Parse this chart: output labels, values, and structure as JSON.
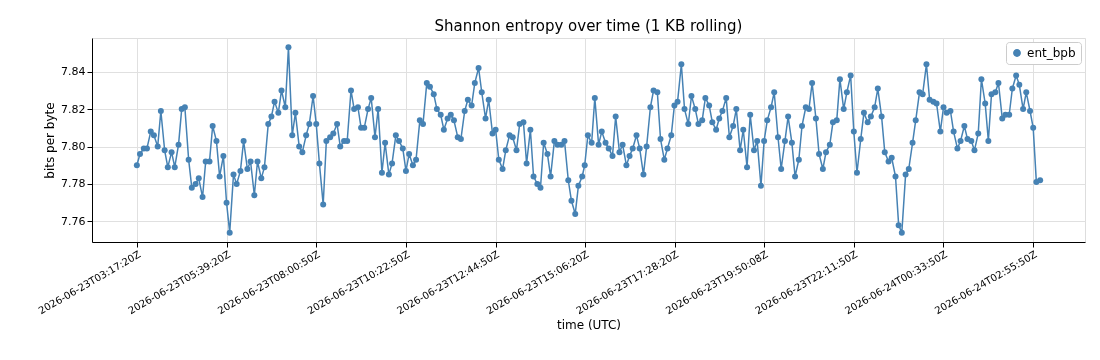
{
  "chart_data": {
    "type": "line",
    "title": "Shannon entropy over time (1 KB rolling)",
    "xlabel": "time (UTC)",
    "ylabel": "bits per byte",
    "xlim": [
      "2026-06-23T02:06",
      "2026-06-24T04:18"
    ],
    "xticks": [
      {
        "value": "2026-06-23T03:17:20",
        "label": "2026-06-23T03:17:20Z"
      },
      {
        "value": "2026-06-23T05:39:20",
        "label": "2026-06-23T05:39:20Z"
      },
      {
        "value": "2026-06-23T08:00:50",
        "label": "2026-06-23T08:00:50Z"
      },
      {
        "value": "2026-06-23T10:22:50",
        "label": "2026-06-23T10:22:50Z"
      },
      {
        "value": "2026-06-23T12:44:50",
        "label": "2026-06-23T12:44:50Z"
      },
      {
        "value": "2026-06-23T15:06:20",
        "label": "2026-06-23T15:06:20Z"
      },
      {
        "value": "2026-06-23T17:28:20",
        "label": "2026-06-23T17:28:20Z"
      },
      {
        "value": "2026-06-23T19:50:08",
        "label": "2026-06-23T19:50:08Z"
      },
      {
        "value": "2026-06-23T22:11:50",
        "label": "2026-06-23T22:11:50Z"
      },
      {
        "value": "2026-06-24T00:33:50",
        "label": "2026-06-24T00:33:50Z"
      },
      {
        "value": "2026-06-24T02:55:50",
        "label": "2026-06-24T02:55:50Z"
      }
    ],
    "ylim": [
      7.749,
      7.858
    ],
    "yticks": [
      {
        "value": 7.76,
        "label": "7.76"
      },
      {
        "value": 7.78,
        "label": "7.78"
      },
      {
        "value": 7.8,
        "label": "7.80"
      },
      {
        "value": 7.82,
        "label": "7.82"
      },
      {
        "value": 7.84,
        "label": "7.84"
      }
    ],
    "grid": true,
    "legend": "top right",
    "marker": "circle",
    "line_style": "solid",
    "x": [
      "2026-06-23T03:17",
      "2026-06-23T03:22",
      "2026-06-23T03:28",
      "2026-06-23T03:33",
      "2026-06-23T03:39",
      "2026-06-23T03:44",
      "2026-06-23T03:50",
      "2026-06-23T03:55",
      "2026-06-23T04:01",
      "2026-06-23T04:06",
      "2026-06-23T04:12",
      "2026-06-23T04:17",
      "2026-06-23T04:23",
      "2026-06-23T04:28",
      "2026-06-23T04:33",
      "2026-06-23T04:39",
      "2026-06-23T04:44",
      "2026-06-23T04:50",
      "2026-06-23T04:55",
      "2026-06-23T05:01",
      "2026-06-23T05:06",
      "2026-06-23T05:12",
      "2026-06-23T05:17",
      "2026-06-23T05:23",
      "2026-06-23T05:28",
      "2026-06-23T05:34",
      "2026-06-23T05:39",
      "2026-06-23T05:44",
      "2026-06-23T05:50",
      "2026-06-23T05:55",
      "2026-06-23T06:01",
      "2026-06-23T06:06",
      "2026-06-23T06:12",
      "2026-06-23T06:17",
      "2026-06-23T06:23",
      "2026-06-23T06:28",
      "2026-06-23T06:34",
      "2026-06-23T06:39",
      "2026-06-23T06:45",
      "2026-06-23T06:50",
      "2026-06-23T06:55",
      "2026-06-23T07:01",
      "2026-06-23T07:06",
      "2026-06-23T07:12",
      "2026-06-23T07:17",
      "2026-06-23T07:23",
      "2026-06-23T07:28",
      "2026-06-23T07:34",
      "2026-06-23T07:39",
      "2026-06-23T07:45",
      "2026-06-23T07:50",
      "2026-06-23T07:56",
      "2026-06-23T08:01",
      "2026-06-23T08:06",
      "2026-06-23T08:12",
      "2026-06-23T08:17",
      "2026-06-23T08:23",
      "2026-06-23T08:28",
      "2026-06-23T08:34",
      "2026-06-23T08:39",
      "2026-06-23T08:45",
      "2026-06-23T08:50",
      "2026-06-23T08:56",
      "2026-06-23T09:01",
      "2026-06-23T09:07",
      "2026-06-23T09:12",
      "2026-06-23T09:17",
      "2026-06-23T09:23",
      "2026-06-23T09:28",
      "2026-06-23T09:34",
      "2026-06-23T09:39",
      "2026-06-23T09:45",
      "2026-06-23T09:50",
      "2026-06-23T09:56",
      "2026-06-23T10:01",
      "2026-06-23T10:07",
      "2026-06-23T10:12",
      "2026-06-23T10:18",
      "2026-06-23T10:23",
      "2026-06-23T10:28",
      "2026-06-23T10:34",
      "2026-06-23T10:39",
      "2026-06-23T10:45",
      "2026-06-23T10:50",
      "2026-06-23T10:56",
      "2026-06-23T11:01",
      "2026-06-23T11:07",
      "2026-06-23T11:12",
      "2026-06-23T11:18",
      "2026-06-23T11:23",
      "2026-06-23T11:29",
      "2026-06-23T11:34",
      "2026-06-23T11:39",
      "2026-06-23T11:45",
      "2026-06-23T11:50",
      "2026-06-23T11:56",
      "2026-06-23T12:01",
      "2026-06-23T12:07",
      "2026-06-23T12:12",
      "2026-06-23T12:18",
      "2026-06-23T12:23",
      "2026-06-23T12:29",
      "2026-06-23T12:34",
      "2026-06-23T12:40",
      "2026-06-23T12:45",
      "2026-06-23T12:50",
      "2026-06-23T12:56",
      "2026-06-23T13:01",
      "2026-06-23T13:07",
      "2026-06-23T13:12",
      "2026-06-23T13:18",
      "2026-06-23T13:23",
      "2026-06-23T13:29",
      "2026-06-23T13:34",
      "2026-06-23T13:40",
      "2026-06-23T13:45",
      "2026-06-23T13:51",
      "2026-06-23T13:56",
      "2026-06-23T14:01",
      "2026-06-23T14:07",
      "2026-06-23T14:12",
      "2026-06-23T14:18",
      "2026-06-23T14:23",
      "2026-06-23T14:29",
      "2026-06-23T14:34",
      "2026-06-23T14:40",
      "2026-06-23T14:45",
      "2026-06-23T14:51",
      "2026-06-23T14:56",
      "2026-06-23T15:02",
      "2026-06-23T15:06",
      "2026-06-23T15:11",
      "2026-06-23T15:17",
      "2026-06-23T15:22",
      "2026-06-23T15:28",
      "2026-06-23T15:33",
      "2026-06-23T15:39",
      "2026-06-23T15:44",
      "2026-06-23T15:50",
      "2026-06-23T15:55",
      "2026-06-23T16:01",
      "2026-06-23T16:06",
      "2026-06-23T16:12",
      "2026-06-23T16:17",
      "2026-06-23T16:22",
      "2026-06-23T16:28",
      "2026-06-23T16:33",
      "2026-06-23T16:39",
      "2026-06-23T16:44",
      "2026-06-23T16:50",
      "2026-06-23T16:55",
      "2026-06-23T17:01",
      "2026-06-23T17:06",
      "2026-06-23T17:12",
      "2026-06-23T17:17",
      "2026-06-23T17:23",
      "2026-06-23T17:28",
      "2026-06-23T17:33",
      "2026-06-23T17:39",
      "2026-06-23T17:44",
      "2026-06-23T17:50",
      "2026-06-23T17:55",
      "2026-06-23T18:01",
      "2026-06-23T18:06",
      "2026-06-23T18:12",
      "2026-06-23T18:17",
      "2026-06-23T18:23",
      "2026-06-23T18:28",
      "2026-06-23T18:34",
      "2026-06-23T18:39",
      "2026-06-23T18:44",
      "2026-06-23T18:50",
      "2026-06-23T18:55",
      "2026-06-23T19:01",
      "2026-06-23T19:06",
      "2026-06-23T19:12",
      "2026-06-23T19:17",
      "2026-06-23T19:23",
      "2026-06-23T19:28",
      "2026-06-23T19:34",
      "2026-06-23T19:39",
      "2026-06-23T19:45",
      "2026-06-23T19:50",
      "2026-06-23T19:55",
      "2026-06-23T20:01",
      "2026-06-23T20:06",
      "2026-06-23T20:12",
      "2026-06-23T20:17",
      "2026-06-23T20:23",
      "2026-06-23T20:28",
      "2026-06-23T20:34",
      "2026-06-23T20:39",
      "2026-06-23T20:45",
      "2026-06-23T20:50",
      "2026-06-23T20:56",
      "2026-06-23T21:01",
      "2026-06-23T21:06",
      "2026-06-23T21:12",
      "2026-06-23T21:17",
      "2026-06-23T21:23",
      "2026-06-23T21:28",
      "2026-06-23T21:34",
      "2026-06-23T21:39",
      "2026-06-23T21:45",
      "2026-06-23T21:50",
      "2026-06-23T21:56",
      "2026-06-23T22:01",
      "2026-06-23T22:07",
      "2026-06-23T22:12",
      "2026-06-23T22:17",
      "2026-06-23T22:23",
      "2026-06-23T22:28",
      "2026-06-23T22:34",
      "2026-06-23T22:39",
      "2026-06-23T22:45",
      "2026-06-23T22:50",
      "2026-06-23T22:56",
      "2026-06-23T23:01",
      "2026-06-23T23:07",
      "2026-06-23T23:12",
      "2026-06-23T23:18",
      "2026-06-23T23:23",
      "2026-06-23T23:28",
      "2026-06-23T23:34",
      "2026-06-23T23:39",
      "2026-06-23T23:45",
      "2026-06-23T23:50",
      "2026-06-23T23:56",
      "2026-06-24T00:01",
      "2026-06-24T00:07",
      "2026-06-24T00:12",
      "2026-06-24T00:18",
      "2026-06-24T00:23",
      "2026-06-24T00:29",
      "2026-06-24T00:34",
      "2026-06-24T00:39",
      "2026-06-24T00:45",
      "2026-06-24T00:50",
      "2026-06-24T00:56",
      "2026-06-24T01:01",
      "2026-06-24T01:07",
      "2026-06-24T01:12",
      "2026-06-24T01:18",
      "2026-06-24T01:23",
      "2026-06-24T01:29",
      "2026-06-24T01:34",
      "2026-06-24T01:40",
      "2026-06-24T01:45",
      "2026-06-24T01:50",
      "2026-06-24T01:56",
      "2026-06-24T02:01",
      "2026-06-24T02:07",
      "2026-06-24T02:12",
      "2026-06-24T02:18",
      "2026-06-24T02:23",
      "2026-06-24T02:29",
      "2026-06-24T02:34",
      "2026-06-24T02:40",
      "2026-06-24T02:45",
      "2026-06-24T02:51",
      "2026-06-24T02:56",
      "2026-06-24T03:01",
      "2026-06-24T03:07"
    ],
    "series": [
      {
        "name": "ent_bpb",
        "color": "#4682b4",
        "values": [
          7.79,
          7.796,
          7.799,
          7.799,
          7.808,
          7.806,
          7.8,
          7.819,
          7.798,
          7.789,
          7.797,
          7.789,
          7.801,
          7.82,
          7.821,
          7.793,
          7.778,
          7.78,
          7.783,
          7.773,
          7.792,
          7.792,
          7.811,
          7.803,
          7.784,
          7.795,
          7.77,
          7.754,
          7.785,
          7.78,
          7.787,
          7.803,
          7.788,
          7.792,
          7.774,
          7.792,
          7.783,
          7.789,
          7.812,
          7.816,
          7.824,
          7.818,
          7.83,
          7.821,
          7.853,
          7.806,
          7.818,
          7.8,
          7.797,
          7.806,
          7.812,
          7.827,
          7.812,
          7.791,
          7.769,
          7.803,
          7.805,
          7.807,
          7.812,
          7.8,
          7.803,
          7.803,
          7.83,
          7.82,
          7.821,
          7.81,
          7.81,
          7.82,
          7.826,
          7.805,
          7.82,
          7.786,
          7.802,
          7.785,
          7.791,
          7.806,
          7.803,
          7.799,
          7.787,
          7.796,
          7.79,
          7.793,
          7.814,
          7.812,
          7.834,
          7.832,
          7.828,
          7.82,
          7.817,
          7.809,
          7.815,
          7.817,
          7.814,
          7.805,
          7.804,
          7.819,
          7.825,
          7.822,
          7.834,
          7.842,
          7.829,
          7.815,
          7.825,
          7.807,
          7.809,
          7.793,
          7.788,
          7.798,
          7.806,
          7.805,
          7.798,
          7.812,
          7.813,
          7.791,
          7.809,
          7.784,
          7.78,
          7.778,
          7.802,
          7.796,
          7.784,
          7.803,
          7.801,
          7.801,
          7.803,
          7.782,
          7.771,
          7.764,
          7.779,
          7.784,
          7.79,
          7.806,
          7.802,
          7.826,
          7.801,
          7.808,
          7.802,
          7.799,
          7.795,
          7.816,
          7.797,
          7.801,
          7.79,
          7.795,
          7.799,
          7.806,
          7.799,
          7.785,
          7.8,
          7.821,
          7.83,
          7.829,
          7.804,
          7.793,
          7.799,
          7.806,
          7.822,
          7.824,
          7.844,
          7.82,
          7.812,
          7.827,
          7.82,
          7.812,
          7.814,
          7.826,
          7.822,
          7.813,
          7.809,
          7.815,
          7.819,
          7.826,
          7.805,
          7.811,
          7.82,
          7.798,
          7.809,
          7.789,
          7.817,
          7.798,
          7.803,
          7.779,
          7.803,
          7.814,
          7.821,
          7.829,
          7.805,
          7.788,
          7.803,
          7.816,
          7.802,
          7.784,
          7.793,
          7.811,
          7.821,
          7.82,
          7.834,
          7.815,
          7.796,
          7.788,
          7.797,
          7.801,
          7.813,
          7.814,
          7.836,
          7.82,
          7.829,
          7.838,
          7.808,
          7.786,
          7.804,
          7.818,
          7.813,
          7.816,
          7.821,
          7.831,
          7.816,
          7.797,
          7.792,
          7.794,
          7.784,
          7.758,
          7.754,
          7.785,
          7.788,
          7.802,
          7.814,
          7.829,
          7.828,
          7.844,
          7.825,
          7.824,
          7.823,
          7.808,
          7.821,
          7.818,
          7.819,
          7.808,
          7.799,
          7.803,
          7.811,
          7.804,
          7.803,
          7.798,
          7.807,
          7.836,
          7.823,
          7.803,
          7.828,
          7.829,
          7.834,
          7.815,
          7.817,
          7.817,
          7.831,
          7.838,
          7.833,
          7.82,
          7.829,
          7.819,
          7.81,
          7.781,
          7.782
        ]
      }
    ]
  }
}
